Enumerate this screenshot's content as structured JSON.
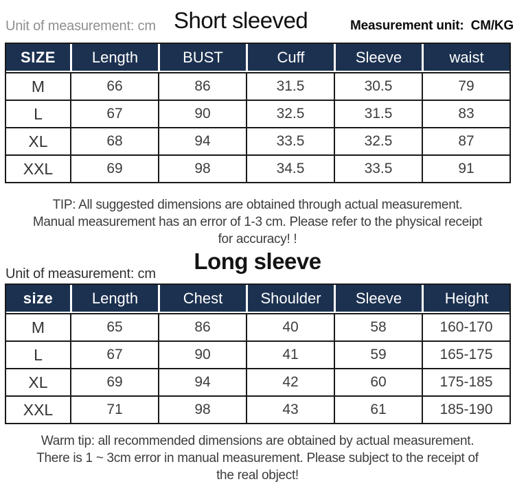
{
  "colors": {
    "table_header_bg": "#1c3150",
    "table_header_text": "#ffffff",
    "grid_line": "#191919",
    "body_text": "#3d3d3d",
    "muted_label": "#8f8f8f"
  },
  "top": {
    "unit_label": "Unit of measurement: cm",
    "title": "Short sleeved",
    "measurement_label": "Measurement unit:  CM/KG"
  },
  "short_table": {
    "headers": [
      "SIZE",
      "Length",
      "BUST",
      "Cuff",
      "Sleeve",
      "waist"
    ],
    "rows": [
      [
        "M",
        "66",
        "86",
        "31.5",
        "30.5",
        "79"
      ],
      [
        "L",
        "67",
        "90",
        "32.5",
        "31.5",
        "83"
      ],
      [
        "XL",
        "68",
        "94",
        "33.5",
        "32.5",
        "87"
      ],
      [
        "XXL",
        "69",
        "98",
        "34.5",
        "33.5",
        "91"
      ]
    ]
  },
  "short_tip": {
    "lines": [
      "TIP: All suggested dimensions are obtained through actual measurement.",
      "Manual measurement has an error of 1-3 cm. Please refer to the physical receipt",
      "for accuracy! !"
    ]
  },
  "long_section": {
    "unit_label": "Unit of measurement: cm",
    "title": "Long sleeve"
  },
  "long_table": {
    "headers": [
      "size",
      "Length",
      "Chest",
      "Shoulder",
      "Sleeve",
      "Height"
    ],
    "rows": [
      [
        "M",
        "65",
        "86",
        "40",
        "58",
        "160-170"
      ],
      [
        "L",
        "67",
        "90",
        "41",
        "59",
        "165-175"
      ],
      [
        "XL",
        "69",
        "94",
        "42",
        "60",
        "175-185"
      ],
      [
        "XXL",
        "71",
        "98",
        "43",
        "61",
        "185-190"
      ]
    ]
  },
  "long_tip": {
    "lines": [
      "Warm tip: all recommended dimensions are obtained by actual measurement.",
      "There is 1 ~ 3cm error in manual measurement. Please subject to the receipt of",
      "the real object!"
    ]
  }
}
